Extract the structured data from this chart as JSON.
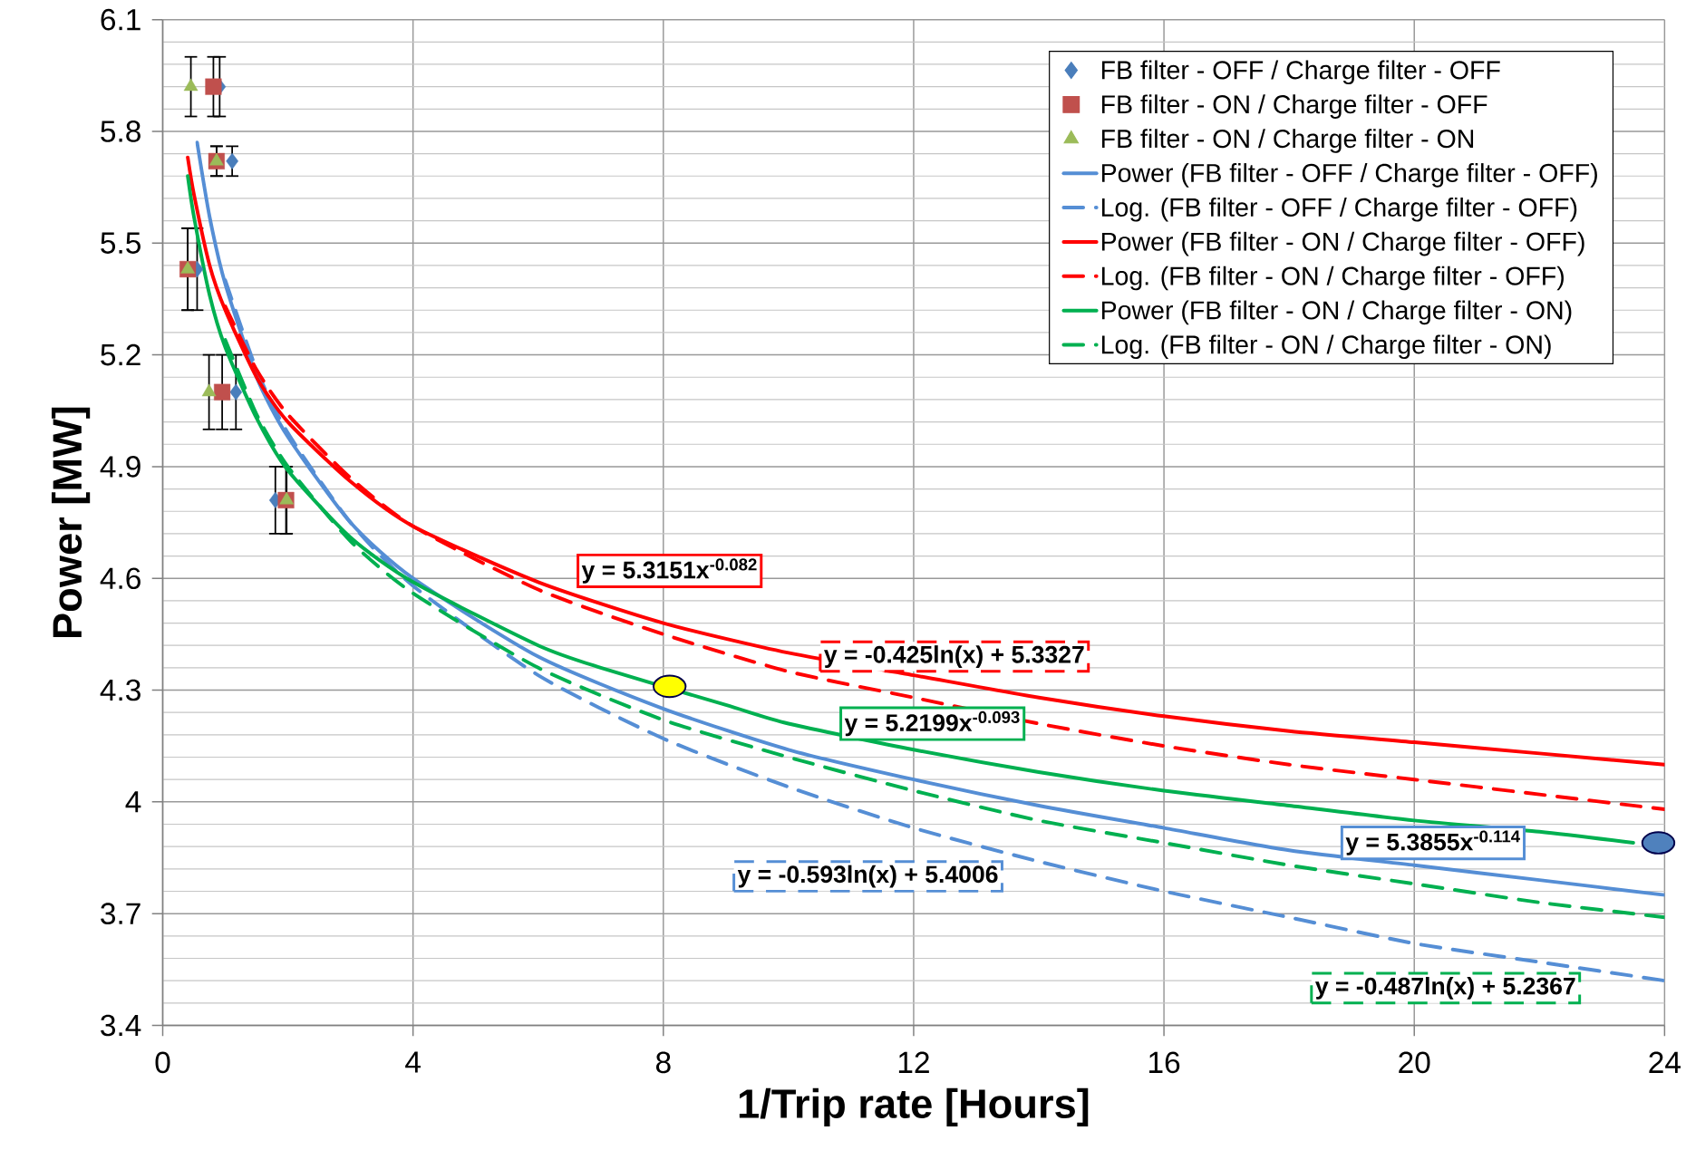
{
  "chart_data": {
    "type": "scatter",
    "xlabel": "1/Trip rate [Hours]",
    "ylabel": "Power [MW]",
    "xlim": [
      0,
      24
    ],
    "xticks": [
      0,
      4,
      8,
      12,
      16,
      20,
      24
    ],
    "ylim": [
      3.4,
      6.1
    ],
    "yticks": [
      3.4,
      3.7,
      4,
      4.3,
      4.6,
      4.9,
      5.2,
      5.5,
      5.8,
      6.1
    ],
    "grid": true,
    "legend": "top right",
    "series": [
      {
        "type": "scatter",
        "marker": "circle",
        "color": "#ffff00",
        "x": [
          8.1
        ],
        "values": [
          4.31
        ]
      },
      {
        "type": "scatter",
        "marker": "circle",
        "color": "#4f81bd",
        "x": [
          23.9
        ],
        "values": [
          3.89
        ]
      },
      {
        "name": "FB filter - OFF /  Charge filter - OFF",
        "type": "scatter",
        "marker": "diamond",
        "color": "#4a7ebb",
        "x": [
          0.91,
          1.11,
          0.55,
          1.17,
          1.8
        ],
        "values": [
          5.92,
          5.72,
          5.43,
          5.1,
          4.81
        ],
        "errors": [
          0.08,
          0.04,
          0.11,
          0.1,
          0.09
        ]
      },
      {
        "name": "FB filter - ON / Charge filter - OFF",
        "type": "scatter",
        "marker": "square",
        "color": "#c0504d",
        "x": [
          0.81,
          0.86,
          0.4,
          0.95,
          1.97
        ],
        "values": [
          5.92,
          5.72,
          5.43,
          5.1,
          4.81
        ],
        "errors": [
          0.08,
          0.04,
          0.11,
          0.1,
          0.09
        ]
      },
      {
        "name": "FB filter - ON / Charge filter - ON",
        "type": "scatter",
        "marker": "triangle",
        "color": "#9bbb59",
        "x": [
          0.45,
          0.86,
          0.4,
          0.74,
          1.98
        ],
        "values": [
          5.92,
          5.72,
          5.43,
          5.1,
          4.81
        ],
        "errors": [
          0.08,
          0.04,
          0.11,
          0.1,
          0.09
        ]
      },
      {
        "name": "Power (FB filter - OFF /  Charge filter - OFF)",
        "type": "line",
        "line_style": "solid",
        "color": "#558ed5",
        "x": [
          0.55,
          0.75,
          1,
          1.5,
          2,
          3,
          4,
          6,
          8,
          10,
          12,
          14,
          16,
          18,
          20,
          22,
          24
        ],
        "values": [
          5.77,
          5.57,
          5.39,
          5.14,
          4.98,
          4.75,
          4.6,
          4.39,
          4.25,
          4.14,
          4.06,
          3.99,
          3.93,
          3.87,
          3.83,
          3.79,
          3.75
        ]
      },
      {
        "name": "Log. (FB filter - OFF /  Charge filter - OFF)",
        "type": "line",
        "line_style": "dashed",
        "color": "#558ed5",
        "x": [
          1,
          1.5,
          2,
          3,
          4,
          6,
          8,
          10,
          12,
          14,
          16,
          18,
          20,
          22,
          24
        ],
        "values": [
          5.4,
          5.16,
          4.99,
          4.75,
          4.58,
          4.34,
          4.17,
          4.04,
          3.93,
          3.84,
          3.76,
          3.69,
          3.62,
          3.57,
          3.52
        ]
      },
      {
        "name": "Power (FB filter - ON / Charge filter - OFF)",
        "type": "line",
        "line_style": "solid",
        "color": "#ff0000",
        "x": [
          0.4,
          0.5,
          0.75,
          1,
          1.5,
          2,
          3,
          4,
          6,
          8,
          10,
          12,
          14,
          16,
          18,
          20,
          22,
          24
        ],
        "values": [
          5.73,
          5.63,
          5.44,
          5.32,
          5.14,
          5.02,
          4.86,
          4.74,
          4.59,
          4.48,
          4.4,
          4.34,
          4.28,
          4.23,
          4.19,
          4.16,
          4.13,
          4.1
        ]
      },
      {
        "name": "Log. (FB filter - ON / Charge filter - OFF)",
        "type": "line",
        "line_style": "dashed",
        "color": "#ff0000",
        "x": [
          1,
          1.5,
          2,
          3,
          4,
          6,
          8,
          10,
          12,
          14,
          16,
          18,
          20,
          22,
          24
        ],
        "values": [
          5.33,
          5.16,
          5.04,
          4.87,
          4.74,
          4.57,
          4.45,
          4.35,
          4.28,
          4.21,
          4.15,
          4.1,
          4.06,
          4.02,
          3.98
        ]
      },
      {
        "name": "Power (FB filter - ON / Charge filter - ON)",
        "type": "line",
        "line_style": "solid",
        "color": "#00b050",
        "x": [
          0.4,
          0.5,
          0.75,
          1,
          1.5,
          2,
          3,
          4,
          6,
          7,
          9,
          10,
          12,
          14,
          16,
          18,
          20,
          22,
          23.5
        ],
        "values": [
          5.68,
          5.57,
          5.36,
          5.22,
          5.03,
          4.89,
          4.71,
          4.59,
          4.42,
          4.36,
          4.26,
          4.21,
          4.14,
          4.08,
          4.03,
          3.99,
          3.95,
          3.92,
          3.89
        ]
      },
      {
        "name": "Log. (FB filter - ON / Charge filter - ON)",
        "type": "line",
        "line_style": "dashed",
        "color": "#00b050",
        "x": [
          1,
          1.5,
          2,
          3,
          4,
          6,
          8,
          10,
          12,
          14,
          16,
          18,
          20,
          22,
          24
        ],
        "values": [
          5.24,
          5.04,
          4.9,
          4.7,
          4.56,
          4.36,
          4.22,
          4.12,
          4.03,
          3.95,
          3.89,
          3.83,
          3.78,
          3.73,
          3.69
        ]
      }
    ],
    "annotations": [
      "y = 5.3151x$^{-0.082}$",
      "y = -0.425ln(x) + 5.3327",
      "y = 5.2199x$^{-0.093}$",
      "y = 5.3855x$^{-0.114}$",
      "y = -0.593ln(x) + 5.4006",
      "y = -0.487ln(x) + 5.2367"
    ]
  }
}
